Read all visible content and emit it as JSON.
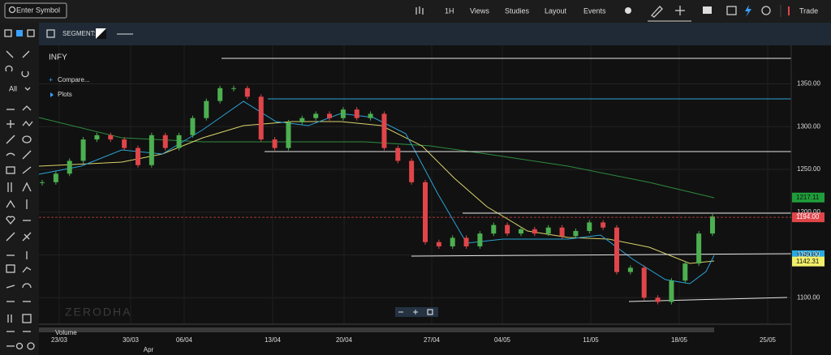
{
  "toolbar": {
    "search_placeholder": "Enter Symbol",
    "interval": "1H",
    "menus": [
      "Views",
      "Studies",
      "Layout",
      "Events"
    ],
    "trade": "Trade"
  },
  "subbar": {
    "segment": "SEGMENT:"
  },
  "sidebar": {
    "drawing_filter": "All"
  },
  "chart": {
    "type": "candlestick",
    "symbol": "INFY",
    "compare": "Compare...",
    "plots": "Plots",
    "watermark": "ZERODHA",
    "volume_label": "Volume",
    "closes": [
      1235,
      1245,
      1260,
      1285,
      1290,
      1285,
      1275,
      1255,
      1290,
      1275,
      1290,
      1310,
      1330,
      1345,
      1345,
      1335,
      1285,
      1275,
      1305,
      1310,
      1315,
      1310,
      1320,
      1310,
      1315,
      1275,
      1260,
      1235,
      1165,
      1160,
      1170,
      1160,
      1175,
      1185,
      1175,
      1180,
      1175,
      1182,
      1172,
      1178,
      1188,
      1182,
      1130,
      1135,
      1100,
      1095,
      1120,
      1140,
      1175,
      1195
    ],
    "up_color": "#4caf50",
    "down_color": "#e0454a",
    "ylim": [
      1069,
      1395
    ],
    "yticks": [
      {
        "value": 1100,
        "label": "1100.00"
      },
      {
        "value": 1150,
        "label": "1150.00"
      },
      {
        "value": 1200,
        "label": "1200.00"
      },
      {
        "value": 1250,
        "label": "1250.00"
      },
      {
        "value": 1300,
        "label": "1300.00"
      },
      {
        "value": 1350,
        "label": "1350.00"
      }
    ],
    "x_labels": [
      "23/03",
      "30/03",
      "06/04",
      "13/04",
      "20/04",
      "27/04",
      "04/05",
      "11/05",
      "18/05",
      "25/05"
    ],
    "month_label": "Apr",
    "price_markers": [
      {
        "value": 1217.11,
        "color": "#1f9d3a"
      },
      {
        "value": 1194,
        "label": "1194.00",
        "color": "#e0454a"
      },
      {
        "value": 1149.62,
        "color": "#29a9e0"
      },
      {
        "value": 1142.31,
        "color": "#f2f06a"
      }
    ]
  }
}
